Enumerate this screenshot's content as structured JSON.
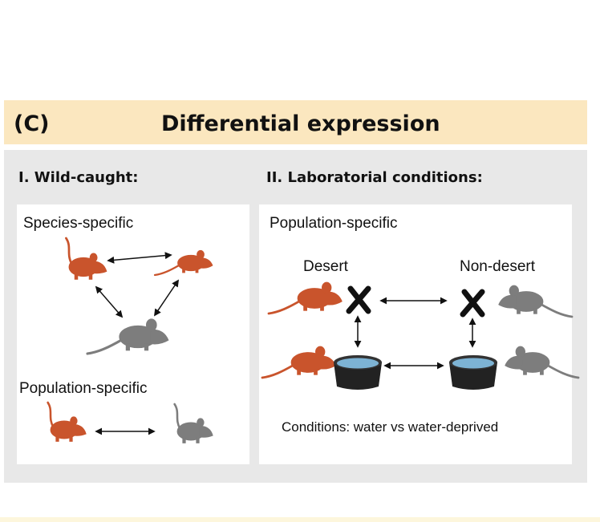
{
  "header": {
    "panel_label": "(C)",
    "title": "Differential expression"
  },
  "wild_caught": {
    "title": "I. Wild-caught:",
    "species_label": "Species-specific",
    "population_label": "Population-specific"
  },
  "lab": {
    "title": "II. Laboratorial conditions:",
    "population_label": "Population-specific",
    "desert_label": "Desert",
    "nondesert_label": "Non-desert",
    "conditions_text": "Conditions: water vs water-deprived"
  },
  "colors": {
    "desert_rodent": "#c9542c",
    "nondesert_rodent": "#7d7d7d",
    "header_bg": "#fbe7bf",
    "panel_bg": "#e8e8e8",
    "water": "#7db3d4"
  }
}
